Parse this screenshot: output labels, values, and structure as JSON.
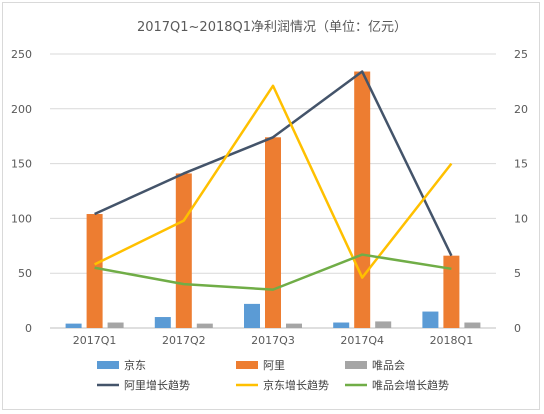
{
  "chart_data": {
    "type": "bar",
    "title": "2017Q1~2018Q1净利润情况（单位：亿元）",
    "categories": [
      "2017Q1",
      "2017Q2",
      "2017Q3",
      "2017Q4",
      "2018Q1"
    ],
    "y_left": {
      "ylim": [
        0,
        250
      ],
      "ticks": [
        0,
        50,
        100,
        150,
        200,
        250
      ]
    },
    "y_right": {
      "ylim": [
        0,
        25
      ],
      "ticks": [
        0,
        5,
        10,
        15,
        20,
        25
      ]
    },
    "grid": true,
    "legend_position": "bottom",
    "bar_series": [
      {
        "name": "京东",
        "values": [
          4,
          10,
          22,
          5,
          15
        ],
        "color": "#5b9bd5",
        "axis": "left"
      },
      {
        "name": "阿里",
        "values": [
          104,
          141,
          174,
          234,
          66
        ],
        "color": "#ed7d31",
        "axis": "left"
      },
      {
        "name": "唯品会",
        "values": [
          5,
          4,
          4,
          6,
          5
        ],
        "color": "#a5a5a5",
        "axis": "left"
      }
    ],
    "line_series": [
      {
        "name": "阿里增长趋势",
        "values": [
          10.4,
          14.1,
          17.4,
          23.4,
          6.6
        ],
        "color": "#44546a",
        "axis": "right"
      },
      {
        "name": "京东增长趋势",
        "values": [
          5.8,
          9.8,
          22.1,
          4.6,
          15.0
        ],
        "color": "#ffc000",
        "axis": "right"
      },
      {
        "name": "唯品会增长趋势",
        "values": [
          5.5,
          4.0,
          3.5,
          6.7,
          5.4
        ],
        "color": "#70ad47",
        "axis": "right"
      }
    ]
  }
}
